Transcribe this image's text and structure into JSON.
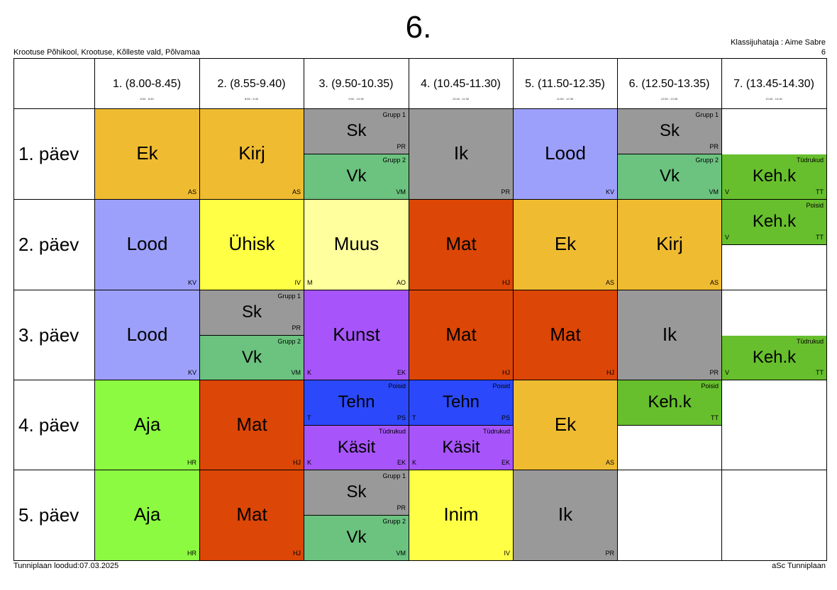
{
  "title": "6.",
  "school": "Krootuse Põhikool, Krootuse, Kõlleste vald, Põlvamaa",
  "class_teacher": "Klassijuhataja : Aime Sabre",
  "class_teacher_number": "6",
  "footer_left": "Tunniplaan loodud:07.03.2025",
  "footer_right": "aSc Tunniplaan",
  "periods": [
    {
      "label": "1. (8.00-8.45)",
      "sub": "8:00 - 8:45"
    },
    {
      "label": "2. (8.55-9.40)",
      "sub": "8:55 - 9:40"
    },
    {
      "label": "3. (9.50-10.35)",
      "sub": "9:50 - 10:35"
    },
    {
      "label": "4. (10.45-11.30)",
      "sub": "10:45 - 11:30"
    },
    {
      "label": "5. (11.50-12.35)",
      "sub": "11:50 - 12:35"
    },
    {
      "label": "6. (12.50-13.35)",
      "sub": "12:50 - 13:35"
    },
    {
      "label": "7. (13.45-14.30)",
      "sub": "13:45 - 14:30"
    }
  ],
  "days": [
    "1. päev",
    "2. päev",
    "3. päev",
    "4. päev",
    "5. päev"
  ],
  "colors": {
    "Ek": "#efbb31",
    "Kirj": "#efbb31",
    "Sk": "#999999",
    "Vk": "#6cc27f",
    "Ik": "#999999",
    "Lood": "#9da0fb",
    "Keh.k": "#67bf2d",
    "Ühisk": "#ffff45",
    "Muus": "#ffff9d",
    "Mat": "#dc4606",
    "Kunst": "#a755fb",
    "Aja": "#8cfa41",
    "Tehn": "#2b49fa",
    "Käsit": "#a755fb",
    "Inim": "#ffff45"
  },
  "lessons": [
    {
      "day": 0,
      "period": 0,
      "part": "full",
      "subject": "Ek",
      "teacher": "AS"
    },
    {
      "day": 0,
      "period": 1,
      "part": "full",
      "subject": "Kirj",
      "teacher": "AS"
    },
    {
      "day": 0,
      "period": 2,
      "part": "top",
      "subject": "Sk",
      "teacher": "PR",
      "group": "Grupp 1"
    },
    {
      "day": 0,
      "period": 2,
      "part": "bottom",
      "subject": "Vk",
      "teacher": "VM",
      "group": "Grupp 2"
    },
    {
      "day": 0,
      "period": 3,
      "part": "full",
      "subject": "Ik",
      "teacher": "PR"
    },
    {
      "day": 0,
      "period": 4,
      "part": "full",
      "subject": "Lood",
      "teacher": "KV"
    },
    {
      "day": 0,
      "period": 5,
      "part": "top",
      "subject": "Sk",
      "teacher": "PR",
      "group": "Grupp 1"
    },
    {
      "day": 0,
      "period": 5,
      "part": "bottom",
      "subject": "Vk",
      "teacher": "VM",
      "group": "Grupp 2"
    },
    {
      "day": 0,
      "period": 6,
      "part": "bottom",
      "subject": "Keh.k",
      "teacher": "TT",
      "group": "Tüdrukud",
      "room": "V"
    },
    {
      "day": 1,
      "period": 0,
      "part": "full",
      "subject": "Lood",
      "teacher": "KV"
    },
    {
      "day": 1,
      "period": 1,
      "part": "full",
      "subject": "Ühisk",
      "teacher": "IV"
    },
    {
      "day": 1,
      "period": 2,
      "part": "full",
      "subject": "Muus",
      "teacher": "AO",
      "room": "M"
    },
    {
      "day": 1,
      "period": 3,
      "part": "full",
      "subject": "Mat",
      "teacher": "HJ"
    },
    {
      "day": 1,
      "period": 4,
      "part": "full",
      "subject": "Ek",
      "teacher": "AS"
    },
    {
      "day": 1,
      "period": 5,
      "part": "full",
      "subject": "Kirj",
      "teacher": "AS"
    },
    {
      "day": 1,
      "period": 6,
      "part": "top",
      "subject": "Keh.k",
      "teacher": "TT",
      "group": "Poisid",
      "room": "V"
    },
    {
      "day": 2,
      "period": 0,
      "part": "full",
      "subject": "Lood",
      "teacher": "KV"
    },
    {
      "day": 2,
      "period": 1,
      "part": "top",
      "subject": "Sk",
      "teacher": "PR",
      "group": "Grupp 1"
    },
    {
      "day": 2,
      "period": 1,
      "part": "bottom",
      "subject": "Vk",
      "teacher": "VM",
      "group": "Grupp 2"
    },
    {
      "day": 2,
      "period": 2,
      "part": "full",
      "subject": "Kunst",
      "teacher": "EK",
      "room": "K"
    },
    {
      "day": 2,
      "period": 3,
      "part": "full",
      "subject": "Mat",
      "teacher": "HJ"
    },
    {
      "day": 2,
      "period": 4,
      "part": "full",
      "subject": "Mat",
      "teacher": "HJ"
    },
    {
      "day": 2,
      "period": 5,
      "part": "full",
      "subject": "Ik",
      "teacher": "PR"
    },
    {
      "day": 2,
      "period": 6,
      "part": "bottom",
      "subject": "Keh.k",
      "teacher": "TT",
      "group": "Tüdrukud",
      "room": "V"
    },
    {
      "day": 3,
      "period": 0,
      "part": "full",
      "subject": "Aja",
      "teacher": "HR"
    },
    {
      "day": 3,
      "period": 1,
      "part": "full",
      "subject": "Mat",
      "teacher": "HJ"
    },
    {
      "day": 3,
      "period": 2,
      "part": "top",
      "subject": "Tehn",
      "teacher": "PS",
      "group": "Poisid",
      "room": "T"
    },
    {
      "day": 3,
      "period": 2,
      "part": "bottom",
      "subject": "Käsit",
      "teacher": "EK",
      "group": "Tüdrukud",
      "room": "K"
    },
    {
      "day": 3,
      "period": 3,
      "part": "top",
      "subject": "Tehn",
      "teacher": "PS",
      "group": "Poisid",
      "room": "T"
    },
    {
      "day": 3,
      "period": 3,
      "part": "bottom",
      "subject": "Käsit",
      "teacher": "EK",
      "group": "Tüdrukud",
      "room": "K"
    },
    {
      "day": 3,
      "period": 4,
      "part": "full",
      "subject": "Ek",
      "teacher": "AS"
    },
    {
      "day": 3,
      "period": 5,
      "part": "top",
      "subject": "Keh.k",
      "teacher": "TT",
      "group": "Poisid"
    },
    {
      "day": 4,
      "period": 0,
      "part": "full",
      "subject": "Aja",
      "teacher": "HR"
    },
    {
      "day": 4,
      "period": 1,
      "part": "full",
      "subject": "Mat",
      "teacher": "HJ"
    },
    {
      "day": 4,
      "period": 2,
      "part": "top",
      "subject": "Sk",
      "teacher": "PR",
      "group": "Grupp 1"
    },
    {
      "day": 4,
      "period": 2,
      "part": "bottom",
      "subject": "Vk",
      "teacher": "VM",
      "group": "Grupp 2"
    },
    {
      "day": 4,
      "period": 3,
      "part": "full",
      "subject": "Inim",
      "teacher": "IV"
    },
    {
      "day": 4,
      "period": 4,
      "part": "full",
      "subject": "Ik",
      "teacher": "PR"
    }
  ]
}
